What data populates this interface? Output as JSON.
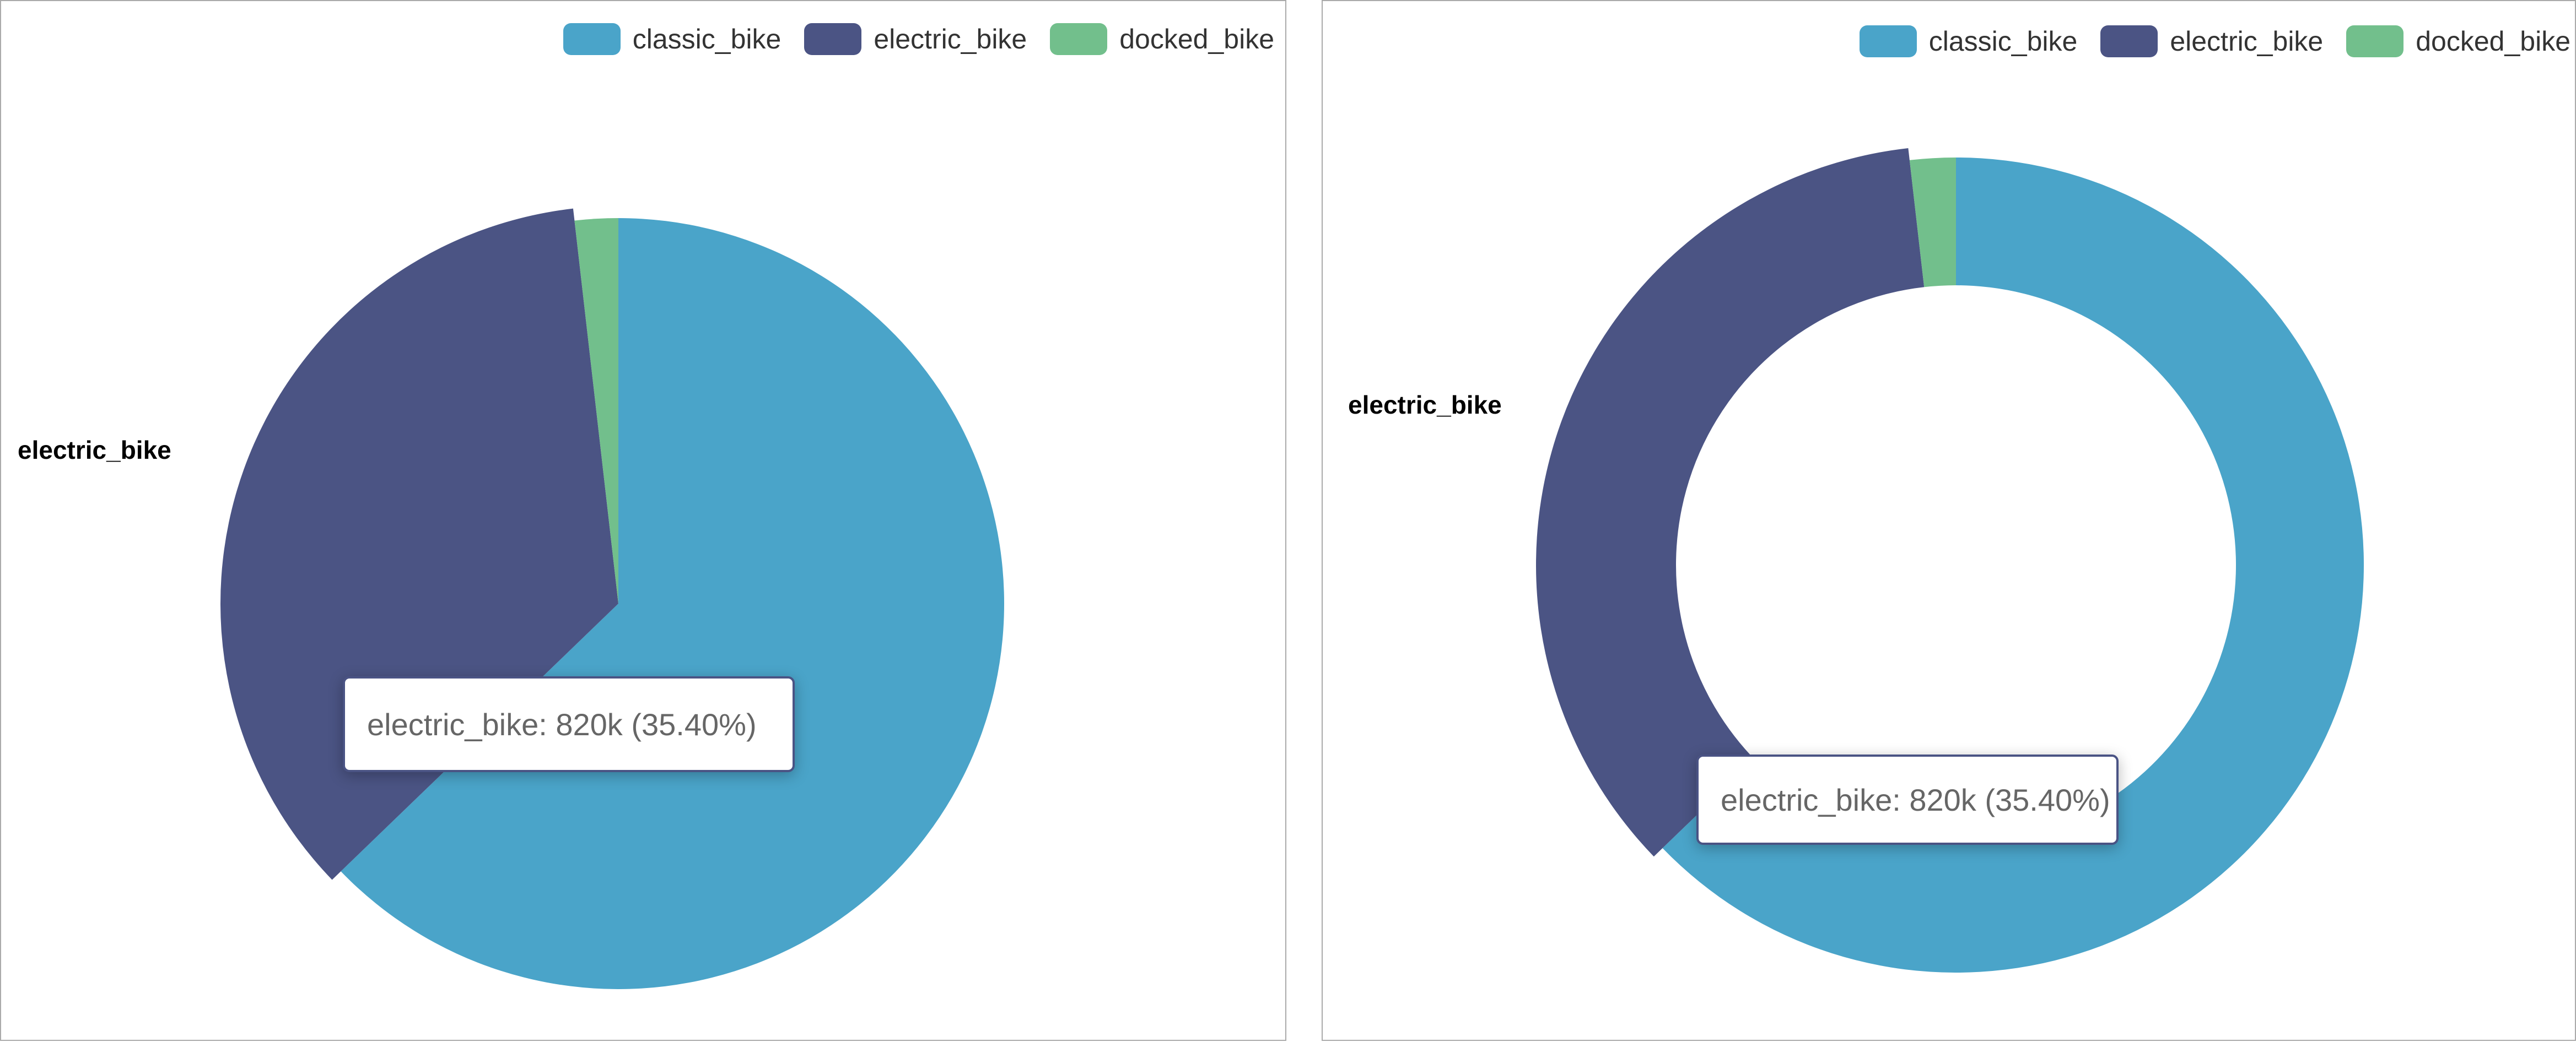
{
  "chart_data": [
    {
      "type": "pie",
      "legend_position": "top-right",
      "categories": [
        "classic_bike",
        "electric_bike",
        "docked_bike"
      ],
      "values": [
        1454000,
        820000,
        42000
      ],
      "colors": [
        "#4aa4c9",
        "#4b5484",
        "#72bf8c"
      ],
      "highlighted": "electric_bike",
      "side_label": "electric_bike",
      "tooltip": {
        "label": "electric_bike",
        "value_text": "820k",
        "percent_text": "35.40%",
        "text": "electric_bike: 820k (35.40%)"
      }
    },
    {
      "type": "pie",
      "variant": "donut",
      "legend_position": "top-right",
      "categories": [
        "classic_bike",
        "electric_bike",
        "docked_bike"
      ],
      "values": [
        1454000,
        820000,
        42000
      ],
      "colors": [
        "#4aa4c9",
        "#4b5484",
        "#72bf8c"
      ],
      "highlighted": "electric_bike",
      "side_label": "electric_bike",
      "tooltip": {
        "label": "electric_bike",
        "value_text": "820k",
        "percent_text": "35.40%",
        "text": "electric_bike: 820k (35.40%)"
      }
    }
  ]
}
